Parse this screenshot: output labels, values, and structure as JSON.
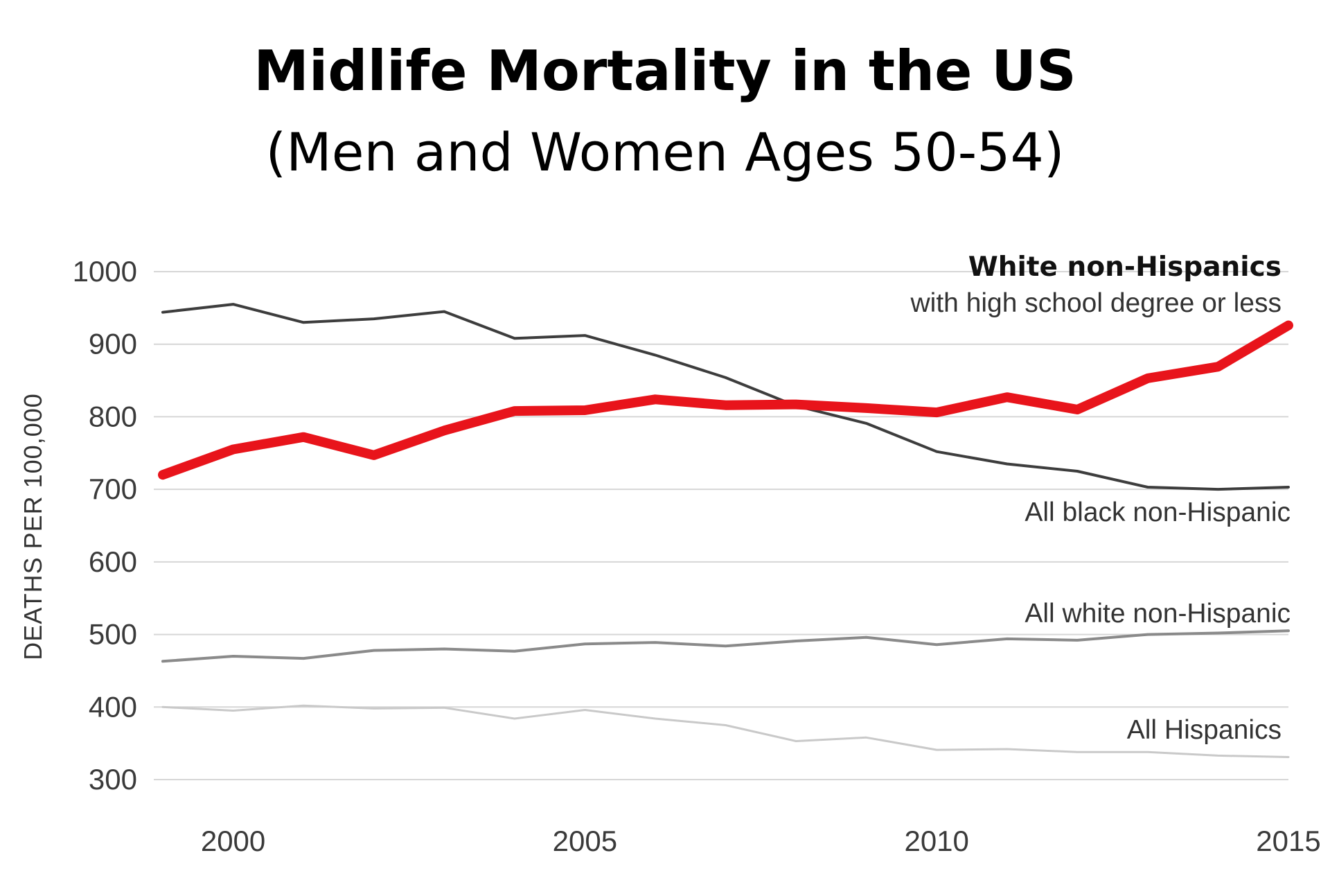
{
  "chart_data": {
    "type": "line",
    "title": "Midlife Mortality in the US",
    "subtitle": "(Men and Women Ages 50-54)",
    "xlabel": "",
    "ylabel": "DEATHS PER 100,000",
    "xlim": [
      1999,
      2015
    ],
    "ylim": [
      300,
      1000
    ],
    "grid": true,
    "x": [
      1999,
      2000,
      2001,
      2002,
      2003,
      2004,
      2005,
      2006,
      2007,
      2008,
      2009,
      2010,
      2011,
      2012,
      2013,
      2014,
      2015
    ],
    "x_ticks": [
      {
        "value": 2000,
        "label": "2000"
      },
      {
        "value": 2005,
        "label": "2005"
      },
      {
        "value": 2010,
        "label": "2010"
      },
      {
        "value": 2015,
        "label": "2015"
      }
    ],
    "y_ticks": [
      {
        "value": 1000,
        "label": "1000"
      },
      {
        "value": 900,
        "label": "900"
      },
      {
        "value": 800,
        "label": "800"
      },
      {
        "value": 700,
        "label": "700"
      },
      {
        "value": 600,
        "label": "600"
      },
      {
        "value": 500,
        "label": "500"
      },
      {
        "value": 400,
        "label": "400"
      },
      {
        "value": 300,
        "label": "300"
      }
    ],
    "series": [
      {
        "id": "white-hs",
        "name": "White non-Hispanics",
        "label_bold": "White non-Hispanics",
        "label_sub": "with high school degree or less",
        "color": "#e8141b",
        "values": [
          720,
          755,
          772,
          747,
          781,
          808,
          809,
          824,
          816,
          817,
          812,
          806,
          827,
          810,
          853,
          869,
          926
        ]
      },
      {
        "id": "black",
        "name": "All black non-Hispanic",
        "label": "All black non-Hispanic",
        "color": "#3d3d3d",
        "values": [
          944,
          955,
          930,
          935,
          945,
          908,
          912,
          885,
          854,
          815,
          791,
          752,
          735,
          725,
          703,
          700,
          703
        ]
      },
      {
        "id": "white",
        "name": "All white non-Hispanic",
        "label": "All white non-Hispanic",
        "color": "#8a8a8a",
        "values": [
          463,
          470,
          467,
          478,
          480,
          477,
          487,
          489,
          484,
          491,
          496,
          486,
          494,
          492,
          500,
          502,
          505
        ]
      },
      {
        "id": "hispanic",
        "name": "All Hispanics",
        "label": "All Hispanics",
        "color": "#c9c9c9",
        "values": [
          400,
          395,
          402,
          398,
          399,
          384,
          396,
          384,
          375,
          353,
          358,
          341,
          342,
          338,
          338,
          333,
          331
        ]
      }
    ]
  }
}
